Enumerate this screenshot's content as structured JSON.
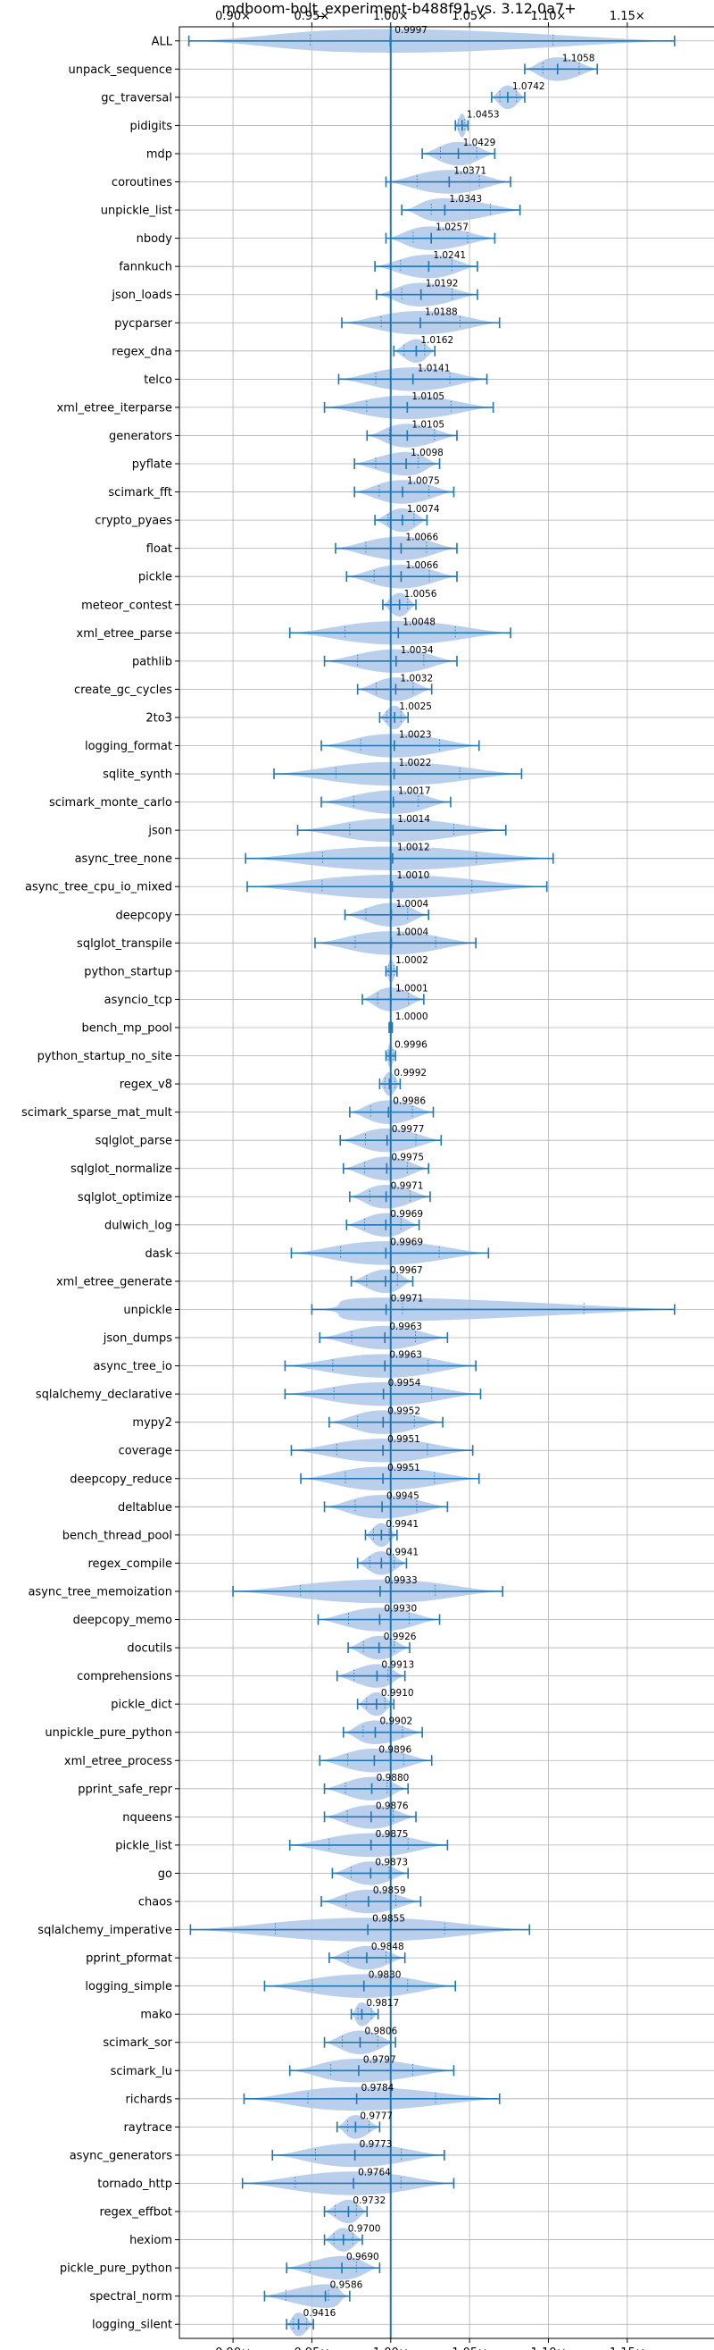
{
  "chart_data": {
    "type": "violin",
    "title": "mdboom-bolt_experiment-b488f91 vs. 3.12.0a7+",
    "xlabel": "",
    "ylabel": "",
    "xlim": [
      0.866,
      1.205
    ],
    "x_ticks": [
      0.9,
      0.95,
      1.0,
      1.05,
      1.1,
      1.15
    ],
    "x_tick_labels": [
      "0.90×",
      "0.95×",
      "1.00×",
      "1.05×",
      "1.10×",
      "1.15×"
    ],
    "reference_line": 1.0,
    "grid": true,
    "colors": {
      "violin": "#aec7e8",
      "line": "#1f77b4",
      "grid": "#b0b0b0",
      "frame": "#000000"
    },
    "benchmarks": [
      {
        "name": "ALL",
        "value": 0.9997,
        "label": "0.9997",
        "min": 0.872,
        "max": 1.18
      },
      {
        "name": "unpack_sequence",
        "value": 1.1058,
        "label": "1.1058",
        "min": 1.085,
        "max": 1.131
      },
      {
        "name": "gc_traversal",
        "value": 1.0742,
        "label": "1.0742",
        "min": 1.064,
        "max": 1.085
      },
      {
        "name": "pidigits",
        "value": 1.0453,
        "label": "1.0453",
        "min": 1.041,
        "max": 1.049
      },
      {
        "name": "mdp",
        "value": 1.0429,
        "label": "1.0429",
        "min": 1.02,
        "max": 1.066
      },
      {
        "name": "coroutines",
        "value": 1.0371,
        "label": "1.0371",
        "min": 0.997,
        "max": 1.076
      },
      {
        "name": "unpickle_list",
        "value": 1.0343,
        "label": "1.0343",
        "min": 1.007,
        "max": 1.082
      },
      {
        "name": "nbody",
        "value": 1.0257,
        "label": "1.0257",
        "min": 0.997,
        "max": 1.066
      },
      {
        "name": "fannkuch",
        "value": 1.0241,
        "label": "1.0241",
        "min": 0.99,
        "max": 1.055
      },
      {
        "name": "json_loads",
        "value": 1.0192,
        "label": "1.0192",
        "min": 0.991,
        "max": 1.055
      },
      {
        "name": "pycparser",
        "value": 1.0188,
        "label": "1.0188",
        "min": 0.969,
        "max": 1.069
      },
      {
        "name": "regex_dna",
        "value": 1.0162,
        "label": "1.0162",
        "min": 1.002,
        "max": 1.028
      },
      {
        "name": "telco",
        "value": 1.0141,
        "label": "1.0141",
        "min": 0.967,
        "max": 1.061
      },
      {
        "name": "xml_etree_iterparse",
        "value": 1.0105,
        "label": "1.0105",
        "min": 0.958,
        "max": 1.065
      },
      {
        "name": "generators",
        "value": 1.0105,
        "label": "1.0105",
        "min": 0.985,
        "max": 1.042
      },
      {
        "name": "pyflate",
        "value": 1.0098,
        "label": "1.0098",
        "min": 0.977,
        "max": 1.031
      },
      {
        "name": "scimark_fft",
        "value": 1.0075,
        "label": "1.0075",
        "min": 0.977,
        "max": 1.04
      },
      {
        "name": "crypto_pyaes",
        "value": 1.0074,
        "label": "1.0074",
        "min": 0.99,
        "max": 1.023
      },
      {
        "name": "float",
        "value": 1.0066,
        "label": "1.0066",
        "min": 0.965,
        "max": 1.042
      },
      {
        "name": "pickle",
        "value": 1.0066,
        "label": "1.0066",
        "min": 0.972,
        "max": 1.042
      },
      {
        "name": "meteor_contest",
        "value": 1.0056,
        "label": "1.0056",
        "min": 0.995,
        "max": 1.016
      },
      {
        "name": "xml_etree_parse",
        "value": 1.0048,
        "label": "1.0048",
        "min": 0.936,
        "max": 1.076
      },
      {
        "name": "pathlib",
        "value": 1.0034,
        "label": "1.0034",
        "min": 0.958,
        "max": 1.042
      },
      {
        "name": "create_gc_cycles",
        "value": 1.0032,
        "label": "1.0032",
        "min": 0.979,
        "max": 1.026
      },
      {
        "name": "2to3",
        "value": 1.0025,
        "label": "1.0025",
        "min": 0.993,
        "max": 1.011
      },
      {
        "name": "logging_format",
        "value": 1.0023,
        "label": "1.0023",
        "min": 0.956,
        "max": 1.056
      },
      {
        "name": "sqlite_synth",
        "value": 1.0022,
        "label": "1.0022",
        "min": 0.926,
        "max": 1.083
      },
      {
        "name": "scimark_monte_carlo",
        "value": 1.0017,
        "label": "1.0017",
        "min": 0.956,
        "max": 1.038
      },
      {
        "name": "json",
        "value": 1.0014,
        "label": "1.0014",
        "min": 0.941,
        "max": 1.073
      },
      {
        "name": "async_tree_none",
        "value": 1.0012,
        "label": "1.0012",
        "min": 0.908,
        "max": 1.103
      },
      {
        "name": "async_tree_cpu_io_mixed",
        "value": 1.001,
        "label": "1.0010",
        "min": 0.909,
        "max": 1.099
      },
      {
        "name": "deepcopy",
        "value": 1.0004,
        "label": "1.0004",
        "min": 0.971,
        "max": 1.024
      },
      {
        "name": "sqlglot_transpile",
        "value": 1.0004,
        "label": "1.0004",
        "min": 0.952,
        "max": 1.054
      },
      {
        "name": "python_startup",
        "value": 1.0002,
        "label": "1.0002",
        "min": 0.997,
        "max": 1.004
      },
      {
        "name": "asyncio_tcp",
        "value": 1.0001,
        "label": "1.0001",
        "min": 0.982,
        "max": 1.021
      },
      {
        "name": "bench_mp_pool",
        "value": 1.0,
        "label": "1.0000",
        "min": 0.999,
        "max": 1.001
      },
      {
        "name": "python_startup_no_site",
        "value": 0.9996,
        "label": "0.9996",
        "min": 0.997,
        "max": 1.003
      },
      {
        "name": "regex_v8",
        "value": 0.9992,
        "label": "0.9992",
        "min": 0.993,
        "max": 1.006
      },
      {
        "name": "scimark_sparse_mat_mult",
        "value": 0.9986,
        "label": "0.9986",
        "min": 0.974,
        "max": 1.027
      },
      {
        "name": "sqlglot_parse",
        "value": 0.9977,
        "label": "0.9977",
        "min": 0.968,
        "max": 1.032
      },
      {
        "name": "sqlglot_normalize",
        "value": 0.9975,
        "label": "0.9975",
        "min": 0.97,
        "max": 1.024
      },
      {
        "name": "sqlglot_optimize",
        "value": 0.9971,
        "label": "0.9971",
        "min": 0.974,
        "max": 1.025
      },
      {
        "name": "dulwich_log",
        "value": 0.9969,
        "label": "0.9969",
        "min": 0.972,
        "max": 1.018
      },
      {
        "name": "dask",
        "value": 0.9969,
        "label": "0.9969",
        "min": 0.937,
        "max": 1.062
      },
      {
        "name": "xml_etree_generate",
        "value": 0.9967,
        "label": "0.9967",
        "min": 0.975,
        "max": 1.014
      },
      {
        "name": "unpickle",
        "value": 0.9971,
        "label": "0.9971",
        "min": 0.95,
        "max": 1.18
      },
      {
        "name": "json_dumps",
        "value": 0.9963,
        "label": "0.9963",
        "min": 0.955,
        "max": 1.036
      },
      {
        "name": "async_tree_io",
        "value": 0.9963,
        "label": "0.9963",
        "min": 0.933,
        "max": 1.054
      },
      {
        "name": "sqlalchemy_declarative",
        "value": 0.9954,
        "label": "0.9954",
        "min": 0.933,
        "max": 1.057
      },
      {
        "name": "mypy2",
        "value": 0.9952,
        "label": "0.9952",
        "min": 0.961,
        "max": 1.033
      },
      {
        "name": "coverage",
        "value": 0.9951,
        "label": "0.9951",
        "min": 0.937,
        "max": 1.052
      },
      {
        "name": "deepcopy_reduce",
        "value": 0.9951,
        "label": "0.9951",
        "min": 0.943,
        "max": 1.056
      },
      {
        "name": "deltablue",
        "value": 0.9945,
        "label": "0.9945",
        "min": 0.958,
        "max": 1.036
      },
      {
        "name": "bench_thread_pool",
        "value": 0.9941,
        "label": "0.9941",
        "min": 0.984,
        "max": 1.004
      },
      {
        "name": "regex_compile",
        "value": 0.9941,
        "label": "0.9941",
        "min": 0.979,
        "max": 1.01
      },
      {
        "name": "async_tree_memoization",
        "value": 0.9933,
        "label": "0.9933",
        "min": 0.9,
        "max": 1.071
      },
      {
        "name": "deepcopy_memo",
        "value": 0.993,
        "label": "0.9930",
        "min": 0.954,
        "max": 1.031
      },
      {
        "name": "docutils",
        "value": 0.9926,
        "label": "0.9926",
        "min": 0.973,
        "max": 1.012
      },
      {
        "name": "comprehensions",
        "value": 0.9913,
        "label": "0.9913",
        "min": 0.966,
        "max": 1.009
      },
      {
        "name": "pickle_dict",
        "value": 0.991,
        "label": "0.9910",
        "min": 0.979,
        "max": 1.002
      },
      {
        "name": "unpickle_pure_python",
        "value": 0.9902,
        "label": "0.9902",
        "min": 0.97,
        "max": 1.02
      },
      {
        "name": "xml_etree_process",
        "value": 0.9896,
        "label": "0.9896",
        "min": 0.955,
        "max": 1.026
      },
      {
        "name": "pprint_safe_repr",
        "value": 0.988,
        "label": "0.9880",
        "min": 0.958,
        "max": 1.011
      },
      {
        "name": "nqueens",
        "value": 0.9876,
        "label": "0.9876",
        "min": 0.958,
        "max": 1.016
      },
      {
        "name": "pickle_list",
        "value": 0.9875,
        "label": "0.9875",
        "min": 0.936,
        "max": 1.036
      },
      {
        "name": "go",
        "value": 0.9873,
        "label": "0.9873",
        "min": 0.963,
        "max": 1.011
      },
      {
        "name": "chaos",
        "value": 0.9859,
        "label": "0.9859",
        "min": 0.956,
        "max": 1.019
      },
      {
        "name": "sqlalchemy_imperative",
        "value": 0.9855,
        "label": "0.9855",
        "min": 0.873,
        "max": 1.088
      },
      {
        "name": "pprint_pformat",
        "value": 0.9848,
        "label": "0.9848",
        "min": 0.961,
        "max": 1.009
      },
      {
        "name": "logging_simple",
        "value": 0.983,
        "label": "0.9830",
        "min": 0.92,
        "max": 1.041
      },
      {
        "name": "mako",
        "value": 0.9817,
        "label": "0.9817",
        "min": 0.975,
        "max": 0.992
      },
      {
        "name": "scimark_sor",
        "value": 0.9806,
        "label": "0.9806",
        "min": 0.958,
        "max": 1.003
      },
      {
        "name": "scimark_lu",
        "value": 0.9797,
        "label": "0.9797",
        "min": 0.936,
        "max": 1.04
      },
      {
        "name": "richards",
        "value": 0.9784,
        "label": "0.9784",
        "min": 0.907,
        "max": 1.069
      },
      {
        "name": "raytrace",
        "value": 0.9777,
        "label": "0.9777",
        "min": 0.966,
        "max": 0.993
      },
      {
        "name": "async_generators",
        "value": 0.9773,
        "label": "0.9773",
        "min": 0.925,
        "max": 1.034
      },
      {
        "name": "tornado_http",
        "value": 0.9764,
        "label": "0.9764",
        "min": 0.906,
        "max": 1.04
      },
      {
        "name": "regex_effbot",
        "value": 0.9732,
        "label": "0.9732",
        "min": 0.958,
        "max": 0.985
      },
      {
        "name": "hexiom",
        "value": 0.97,
        "label": "0.9700",
        "min": 0.958,
        "max": 0.982
      },
      {
        "name": "pickle_pure_python",
        "value": 0.969,
        "label": "0.9690",
        "min": 0.934,
        "max": 0.993
      },
      {
        "name": "spectral_norm",
        "value": 0.9586,
        "label": "0.9586",
        "min": 0.92,
        "max": 0.974
      },
      {
        "name": "logging_silent",
        "value": 0.9416,
        "label": "0.9416",
        "min": 0.934,
        "max": 0.951
      }
    ]
  }
}
